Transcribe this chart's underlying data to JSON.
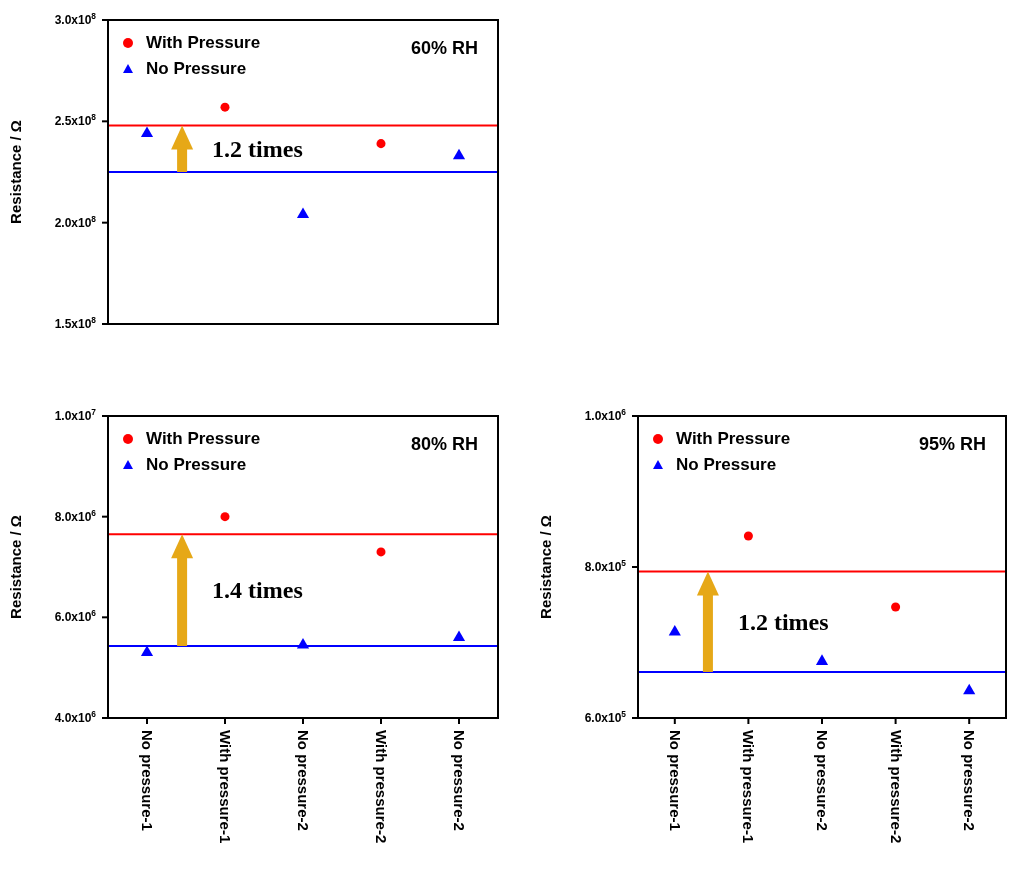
{
  "chart_data": [
    {
      "type": "scatter",
      "categories": [
        null,
        null,
        null,
        null,
        null
      ],
      "ylabel": "Resistance / Ω",
      "ylim": [
        150000000,
        300000000
      ],
      "yticks": [
        {
          "value": 150000000,
          "label": "1.5x10$^{8}$"
        },
        {
          "value": 200000000,
          "label": "2.0x10$^{8}$"
        },
        {
          "value": 250000000,
          "label": "2.5x10$^{8}$"
        },
        {
          "value": 300000000,
          "label": "3.0x10$^{8}$"
        }
      ],
      "tick_labels": "y",
      "legend": "top left",
      "series": [
        {
          "name": "With Pressure",
          "color": "#ff0000",
          "marker": "circle",
          "values": [
            null,
            257000000,
            null,
            239000000,
            null
          ]
        },
        {
          "name": "No Pressure",
          "color": "#0000ff",
          "marker": "triangle",
          "values": [
            244000000,
            null,
            204000000,
            null,
            233000000
          ]
        }
      ],
      "ref_lines": [
        {
          "axis": "y",
          "value": 248000000,
          "color": "#ff0000"
        },
        {
          "axis": "y",
          "value": 225000000,
          "color": "#0000ff"
        }
      ],
      "annotations": [
        "60% RH",
        "1.2 times"
      ]
    },
    {
      "type": "scatter",
      "categories": [
        "No pressure-1",
        "With pressure-1",
        "No pressure-2",
        "With pressure-2",
        "No pressure-2"
      ],
      "ylabel": "Resistance / Ω",
      "ylim": [
        4000000,
        10000000
      ],
      "yticks": [
        {
          "value": 4000000,
          "label": "4.0x10$^{6}$"
        },
        {
          "value": 6000000,
          "label": "6.0x10$^{6}$"
        },
        {
          "value": 8000000,
          "label": "8.0x10$^{6}$"
        },
        {
          "value": 10000000,
          "label": "1.0x10$^{7}$"
        }
      ],
      "legend": "top left",
      "series": [
        {
          "name": "With Pressure",
          "color": "#ff0000",
          "marker": "circle",
          "values": [
            null,
            8000000,
            null,
            7300000,
            null
          ]
        },
        {
          "name": "No Pressure",
          "color": "#0000ff",
          "marker": "triangle",
          "values": [
            5300000,
            null,
            5450000,
            null,
            5600000
          ]
        }
      ],
      "ref_lines": [
        {
          "axis": "y",
          "value": 7650000,
          "color": "#ff0000"
        },
        {
          "axis": "y",
          "value": 5430000,
          "color": "#0000ff"
        }
      ],
      "annotations": [
        "80% RH",
        "1.4 times"
      ]
    },
    {
      "type": "scatter",
      "categories": [
        "No pressure-1",
        "With pressure-1",
        "No pressure-2",
        "With pressure-2",
        "No pressure-2"
      ],
      "ylabel": "Resistance / Ω",
      "ylim": [
        600000,
        1000000
      ],
      "yticks": [
        {
          "value": 600000,
          "label": "6.0x10$^{5}$"
        },
        {
          "value": 800000,
          "label": "8.0x10$^{5}$"
        },
        {
          "value": 1000000,
          "label": "1.0x10$^{6}$"
        }
      ],
      "legend": "top left",
      "series": [
        {
          "name": "With Pressure",
          "color": "#ff0000",
          "marker": "circle",
          "values": [
            null,
            841000,
            null,
            747000,
            null
          ]
        },
        {
          "name": "No Pressure",
          "color": "#0000ff",
          "marker": "triangle",
          "values": [
            714000,
            null,
            675000,
            null,
            636000
          ]
        }
      ],
      "ref_lines": [
        {
          "axis": "y",
          "value": 794000,
          "color": "#ff0000"
        },
        {
          "axis": "y",
          "value": 661000,
          "color": "#0000ff"
        }
      ],
      "annotations": [
        "95% RH",
        "1.2 times"
      ]
    }
  ]
}
